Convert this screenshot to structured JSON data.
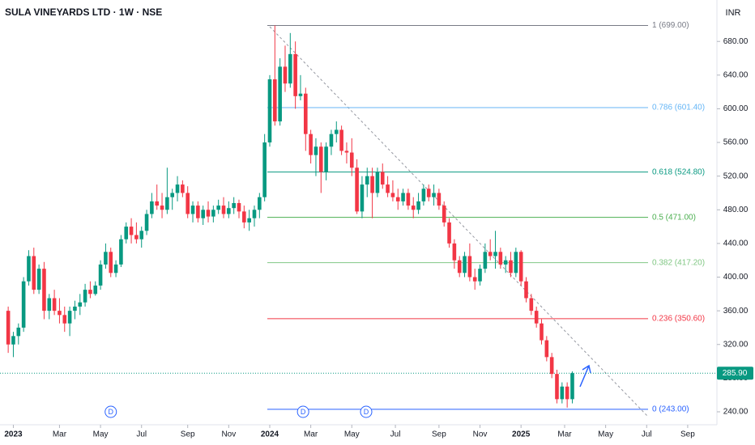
{
  "chart_data": {
    "type": "candlestick",
    "title": "SULA VINEYARDS LTD · 1W · NSE",
    "currency": "INR",
    "up_color": "#089981",
    "down_color": "#f23645",
    "xlim": [
      -1.6,
      138.2
    ],
    "ylim": [
      224.6,
      710
    ],
    "yticks": [
      {
        "value": 240,
        "label": "240.00"
      },
      {
        "value": 280,
        "label": "280.00"
      },
      {
        "value": 320,
        "label": "320.00"
      },
      {
        "value": 360,
        "label": "360.00"
      },
      {
        "value": 400,
        "label": "400.00"
      },
      {
        "value": 440,
        "label": "440.00"
      },
      {
        "value": 480,
        "label": "480.00"
      },
      {
        "value": 520,
        "label": "520.00"
      },
      {
        "value": 560,
        "label": "560.00"
      },
      {
        "value": 600,
        "label": "600.00"
      },
      {
        "value": 640,
        "label": "640.00"
      },
      {
        "value": 680,
        "label": "680.00"
      }
    ],
    "xticks": [
      {
        "value": 1,
        "label": "2023"
      },
      {
        "value": 10,
        "label": "Mar"
      },
      {
        "value": 18,
        "label": "May"
      },
      {
        "value": 26,
        "label": "Jul"
      },
      {
        "value": 35,
        "label": "Sep"
      },
      {
        "value": 43,
        "label": "Nov"
      },
      {
        "value": 51,
        "label": "2024"
      },
      {
        "value": 59,
        "label": "Mar"
      },
      {
        "value": 67,
        "label": "May"
      },
      {
        "value": 75.5,
        "label": "Jul"
      },
      {
        "value": 84,
        "label": "Sep"
      },
      {
        "value": 92,
        "label": "Nov"
      },
      {
        "value": 100,
        "label": "2025"
      },
      {
        "value": 108.5,
        "label": "Mar"
      },
      {
        "value": 116.5,
        "label": "May"
      },
      {
        "value": 124.5,
        "label": "Jul"
      },
      {
        "value": 132.5,
        "label": "Sep"
      }
    ],
    "candles": [
      [
        360,
        365,
        310,
        320
      ],
      [
        320,
        335,
        305,
        330
      ],
      [
        330,
        345,
        320,
        340
      ],
      [
        340,
        400,
        335,
        395
      ],
      [
        395,
        432,
        390,
        425
      ],
      [
        425,
        435,
        380,
        385
      ],
      [
        385,
        415,
        380,
        410
      ],
      [
        410,
        418,
        350,
        360
      ],
      [
        360,
        380,
        350,
        375
      ],
      [
        375,
        385,
        355,
        360
      ],
      [
        360,
        375,
        345,
        355
      ],
      [
        355,
        365,
        335,
        345
      ],
      [
        345,
        365,
        330,
        360
      ],
      [
        360,
        372,
        350,
        365
      ],
      [
        365,
        380,
        355,
        370
      ],
      [
        370,
        392,
        365,
        385
      ],
      [
        385,
        395,
        375,
        380
      ],
      [
        380,
        395,
        378,
        390
      ],
      [
        390,
        420,
        385,
        415
      ],
      [
        415,
        440,
        410,
        430
      ],
      [
        430,
        435,
        400,
        405
      ],
      [
        405,
        420,
        400,
        415
      ],
      [
        415,
        450,
        412,
        445
      ],
      [
        445,
        465,
        440,
        460
      ],
      [
        460,
        470,
        440,
        450
      ],
      [
        450,
        465,
        440,
        445
      ],
      [
        445,
        460,
        435,
        455
      ],
      [
        455,
        480,
        450,
        475
      ],
      [
        475,
        500,
        470,
        490
      ],
      [
        490,
        510,
        480,
        485
      ],
      [
        485,
        500,
        470,
        480
      ],
      [
        480,
        530,
        475,
        495
      ],
      [
        495,
        505,
        480,
        500
      ],
      [
        500,
        520,
        490,
        510
      ],
      [
        510,
        515,
        495,
        500
      ],
      [
        500,
        508,
        470,
        475
      ],
      [
        475,
        490,
        465,
        485
      ],
      [
        485,
        490,
        465,
        470
      ],
      [
        470,
        485,
        462,
        480
      ],
      [
        480,
        490,
        465,
        472
      ],
      [
        472,
        485,
        465,
        480
      ],
      [
        480,
        492,
        475,
        485
      ],
      [
        485,
        495,
        470,
        475
      ],
      [
        475,
        490,
        470,
        482
      ],
      [
        482,
        495,
        475,
        488
      ],
      [
        488,
        492,
        470,
        478
      ],
      [
        478,
        485,
        458,
        465
      ],
      [
        465,
        480,
        455,
        470
      ],
      [
        470,
        485,
        460,
        480
      ],
      [
        480,
        500,
        470,
        495
      ],
      [
        495,
        570,
        490,
        560
      ],
      [
        560,
        640,
        555,
        635
      ],
      [
        635,
        699,
        580,
        585
      ],
      [
        585,
        660,
        580,
        650
      ],
      [
        650,
        675,
        620,
        630
      ],
      [
        630,
        690,
        625,
        665
      ],
      [
        665,
        680,
        600,
        615
      ],
      [
        615,
        640,
        610,
        618
      ],
      [
        618,
        625,
        550,
        570
      ],
      [
        570,
        575,
        535,
        545
      ],
      [
        545,
        565,
        520,
        555
      ],
      [
        555,
        560,
        500,
        525
      ],
      [
        525,
        560,
        515,
        555
      ],
      [
        555,
        575,
        545,
        570
      ],
      [
        570,
        585,
        560,
        575
      ],
      [
        575,
        580,
        545,
        550
      ],
      [
        550,
        560,
        535,
        548
      ],
      [
        548,
        565,
        520,
        530
      ],
      [
        530,
        540,
        475,
        478
      ],
      [
        478,
        520,
        470,
        510
      ],
      [
        510,
        530,
        495,
        520
      ],
      [
        520,
        530,
        470,
        500
      ],
      [
        500,
        530,
        495,
        525
      ],
      [
        525,
        535,
        505,
        510
      ],
      [
        510,
        520,
        495,
        500
      ],
      [
        500,
        515,
        490,
        495
      ],
      [
        495,
        505,
        480,
        490
      ],
      [
        490,
        505,
        485,
        500
      ],
      [
        500,
        505,
        480,
        485
      ],
      [
        485,
        495,
        470,
        480
      ],
      [
        480,
        500,
        475,
        490
      ],
      [
        490,
        510,
        485,
        505
      ],
      [
        505,
        510,
        490,
        495
      ],
      [
        495,
        510,
        485,
        500
      ],
      [
        500,
        505,
        480,
        485
      ],
      [
        485,
        490,
        460,
        465
      ],
      [
        465,
        470,
        435,
        440
      ],
      [
        440,
        445,
        410,
        420
      ],
      [
        420,
        425,
        400,
        405
      ],
      [
        405,
        430,
        400,
        425
      ],
      [
        425,
        440,
        395,
        400
      ],
      [
        400,
        410,
        385,
        395
      ],
      [
        395,
        415,
        390,
        410
      ],
      [
        410,
        440,
        405,
        430
      ],
      [
        430,
        445,
        420,
        425
      ],
      [
        425,
        455,
        410,
        430
      ],
      [
        430,
        435,
        410,
        415
      ],
      [
        415,
        425,
        405,
        420
      ],
      [
        420,
        430,
        400,
        405
      ],
      [
        405,
        435,
        400,
        430
      ],
      [
        430,
        432,
        390,
        395
      ],
      [
        395,
        400,
        370,
        375
      ],
      [
        375,
        380,
        355,
        360
      ],
      [
        360,
        365,
        340,
        345
      ],
      [
        345,
        350,
        320,
        325
      ],
      [
        325,
        330,
        300,
        305
      ],
      [
        305,
        310,
        280,
        285
      ],
      [
        285,
        290,
        250,
        255
      ],
      [
        255,
        275,
        250,
        270
      ],
      [
        270,
        275,
        245,
        255
      ],
      [
        255,
        288,
        250,
        285.9
      ]
    ],
    "fib_levels": [
      {
        "value": 699,
        "label": "1 (699.00)",
        "color": "#787b86"
      },
      {
        "value": 601.4,
        "label": "0.786 (601.40)",
        "color": "#64b5f6"
      },
      {
        "value": 524.8,
        "label": "0.618 (524.80)",
        "color": "#089981"
      },
      {
        "value": 471,
        "label": "0.5 (471.00)",
        "color": "#4caf50"
      },
      {
        "value": 417.2,
        "label": "0.382 (417.20)",
        "color": "#81c784"
      },
      {
        "value": 350.6,
        "label": "0.236 (350.60)",
        "color": "#f23645"
      },
      {
        "value": 243,
        "label": "0 (243.00)",
        "color": "#2962ff"
      }
    ],
    "last_price": {
      "value": 285.9,
      "label": "285.90"
    },
    "dividend_markers": [
      {
        "value": 20,
        "label": "D"
      },
      {
        "value": 57.5,
        "label": "D"
      },
      {
        "value": 69.8,
        "label": "D"
      }
    ]
  }
}
